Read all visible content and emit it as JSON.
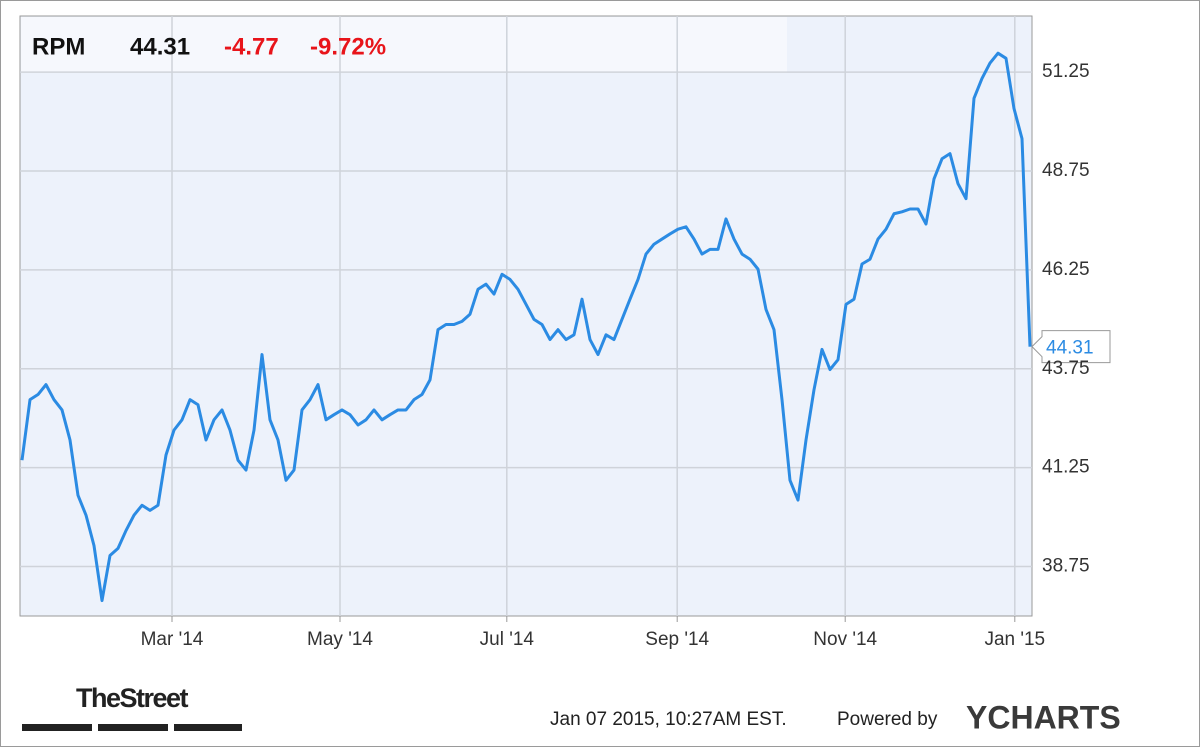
{
  "chart_data": {
    "type": "line",
    "ticker": "RPM",
    "price": "44.31",
    "change": "-4.77",
    "change_percent": "-9.72%",
    "color": "#2b8be3",
    "values": [
      41.44,
      42.97,
      43.1,
      43.35,
      42.97,
      42.71,
      41.95,
      40.55,
      40.05,
      39.28,
      37.89,
      39.03,
      39.21,
      39.66,
      40.05,
      40.3,
      40.17,
      40.3,
      41.57,
      42.2,
      42.46,
      42.97,
      42.84,
      41.95,
      42.46,
      42.71,
      42.2,
      41.44,
      41.19,
      42.2,
      44.11,
      42.46,
      41.95,
      40.93,
      41.19,
      42.71,
      42.97,
      43.35,
      42.46,
      42.59,
      42.71,
      42.59,
      42.33,
      42.46,
      42.71,
      42.46,
      42.59,
      42.71,
      42.71,
      42.97,
      43.1,
      43.47,
      44.74,
      44.87,
      44.87,
      44.95,
      45.13,
      45.76,
      45.89,
      45.64,
      46.14,
      46.01,
      45.76,
      45.38,
      45.0,
      44.87,
      44.49,
      44.74,
      44.49,
      44.61,
      45.51,
      44.49,
      44.11,
      44.61,
      44.49,
      45.0,
      45.51,
      46.01,
      46.65,
      46.9,
      47.03,
      47.16,
      47.28,
      47.34,
      47.03,
      46.65,
      46.77,
      46.77,
      47.54,
      47.03,
      46.65,
      46.52,
      46.27,
      45.25,
      44.74,
      42.97,
      40.93,
      40.43,
      41.95,
      43.22,
      44.24,
      43.73,
      43.98,
      45.38,
      45.51,
      46.4,
      46.52,
      47.03,
      47.28,
      47.67,
      47.72,
      47.79,
      47.79,
      47.41,
      48.55,
      49.06,
      49.19,
      48.43,
      48.05,
      50.59,
      51.09,
      51.48,
      51.73,
      51.6,
      50.33,
      49.57,
      44.31
    ],
    "xlim": [
      0,
      126.5
    ],
    "xticks": [
      {
        "value": 18.75,
        "label": "Mar '14"
      },
      {
        "value": 39.75,
        "label": "May '14"
      },
      {
        "value": 60.6,
        "label": "Jul '14"
      },
      {
        "value": 81.9,
        "label": "Sep '14"
      },
      {
        "value": 102.9,
        "label": "Nov '14"
      },
      {
        "value": 124.1,
        "label": "Jan '15"
      }
    ],
    "ylim": [
      37.5,
      52.67
    ],
    "yticks": [
      38.75,
      41.25,
      43.75,
      46.25,
      48.75,
      51.25
    ],
    "grid": true,
    "source_logo": "TheStreet",
    "timestamp": "Jan 07 2015, 10:27AM EST.",
    "powered_by": "Powered by",
    "brand": "YCHARTS"
  }
}
